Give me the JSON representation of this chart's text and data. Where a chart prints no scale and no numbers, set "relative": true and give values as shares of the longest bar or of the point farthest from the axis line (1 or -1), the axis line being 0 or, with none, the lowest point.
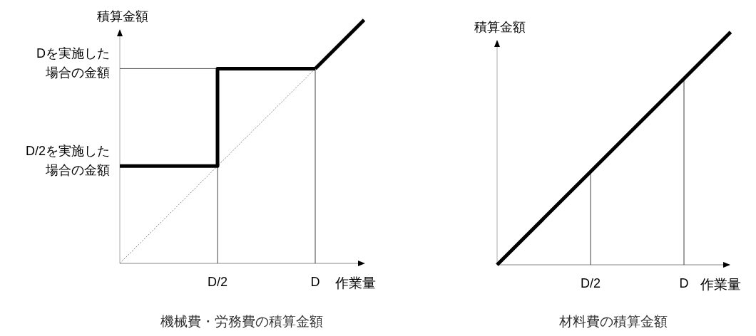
{
  "chart_data": [
    {
      "type": "line",
      "title": "機械費・労務費の積算金額",
      "xlabel": "作業量",
      "ylabel": "積算金額",
      "relative": true,
      "categories": [
        null,
        null,
        "D/2",
        null,
        "D",
        null
      ],
      "annotations": [
        "Dを実施した場合の金額",
        "D/2を実施した場合の金額"
      ],
      "ref_lines": [
        {
          "axis": "x",
          "value": "D/2",
          "color": "#404040"
        },
        {
          "axis": "x",
          "value": "D",
          "color": "#404040"
        },
        {
          "axis": "y",
          "value": 0.8,
          "color": "#404040"
        }
      ],
      "series": [
        {
          "type": "step",
          "color": "#000000",
          "values": [
            0.4,
            0.4,
            0.8,
            0.8,
            0.8,
            null
          ]
        },
        {
          "color": "#000000",
          "values": [
            null,
            null,
            null,
            null,
            0.8,
            1
          ]
        },
        {
          "color": "#808080",
          "line_style": "dotted",
          "values": [
            0,
            0.2,
            0.4,
            0.6,
            0.8,
            null
          ]
        }
      ]
    },
    {
      "type": "line",
      "title": "材料費の積算金額",
      "xlabel": "作業量",
      "ylabel": "積算金額",
      "relative": true,
      "categories": [
        null,
        null,
        "D/2",
        null,
        "D",
        null
      ],
      "ref_lines": [
        {
          "axis": "x",
          "value": "D/2",
          "color": "#404040"
        },
        {
          "axis": "x",
          "value": "D",
          "color": "#404040"
        }
      ],
      "series": [
        {
          "color": "#000000",
          "values": [
            0,
            0.2,
            0.4,
            0.6,
            0.8,
            1
          ]
        }
      ]
    }
  ]
}
